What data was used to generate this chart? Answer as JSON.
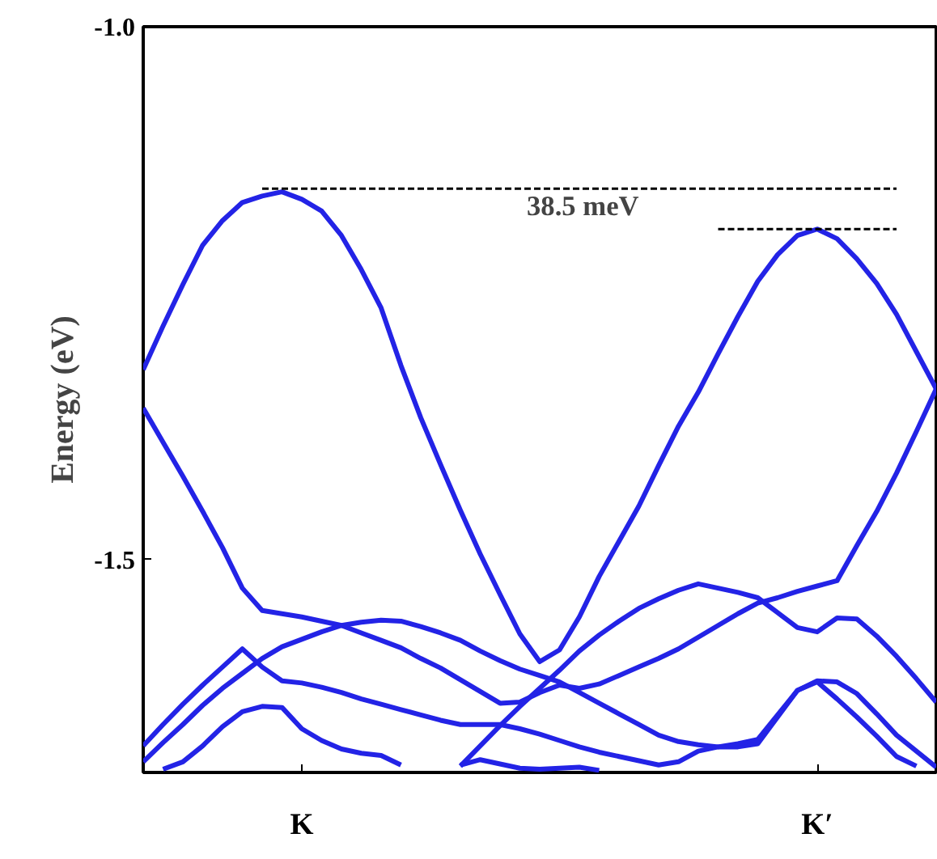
{
  "chart_data": {
    "type": "line",
    "ylabel": "Energy (eV)",
    "ylim": [
      -1.7,
      -1.0
    ],
    "categories": [
      null,
      null,
      null,
      null,
      null,
      null,
      null,
      null,
      "K",
      null,
      null,
      null,
      null,
      null,
      null,
      null,
      null,
      null,
      null,
      null,
      null,
      null,
      null,
      null,
      null,
      null,
      null,
      null,
      null,
      null,
      null,
      null,
      null,
      null,
      "K′",
      null,
      null,
      null,
      null,
      null,
      null
    ],
    "yticks": [
      {
        "value": -1.0,
        "label": "-1.0"
      },
      {
        "value": -1.5,
        "label": "-1.5"
      }
    ],
    "grid": false,
    "line_style": "solid",
    "marker": "none",
    "annotations": [
      "38.5 meV"
    ],
    "series": [
      {
        "color": "#2323e6",
        "values": [
          -1.322,
          -1.281,
          -1.242,
          -1.205,
          -1.182,
          -1.165,
          -1.159,
          -1.155,
          -1.162,
          -1.173,
          -1.196,
          -1.228,
          -1.264,
          -1.318,
          -1.367,
          -1.411,
          -1.454,
          -1.495,
          -1.533,
          -1.57,
          -1.596,
          -1.585,
          -1.554,
          -1.516,
          -1.483,
          -1.45,
          -1.412,
          -1.375,
          -1.343,
          -1.307,
          -1.272,
          -1.239,
          -1.214,
          -1.196,
          -1.19,
          -1.199,
          -1.218,
          -1.241,
          -1.27,
          -1.305,
          -1.34
        ]
      },
      {
        "color": "#2323e6",
        "values": [
          -1.358,
          -1.39,
          -1.422,
          -1.455,
          -1.489,
          -1.527,
          -1.548,
          -1.551,
          -1.554,
          -1.558,
          -1.562,
          -1.569,
          -1.576,
          -1.583,
          -1.593,
          -1.602,
          -1.613,
          -1.624,
          -1.635,
          -1.634,
          -1.625,
          -1.618,
          -1.621,
          -1.617,
          -1.609,
          -1.601,
          -1.593,
          -1.584,
          -1.573,
          -1.562,
          -1.551,
          -1.541,
          -1.536,
          -1.53,
          -1.525,
          -1.52,
          -1.487,
          -1.455,
          -1.419,
          -1.38,
          -1.34
        ]
      },
      {
        "color": "#2323e6",
        "values": [
          -1.69,
          -1.672,
          -1.655,
          -1.637,
          -1.621,
          -1.607,
          -1.593,
          -1.582,
          -1.575,
          -1.568,
          -1.562,
          -1.559,
          -1.557,
          -1.558,
          -1.563,
          -1.569,
          -1.576,
          -1.586,
          -1.595,
          -1.603,
          -1.609,
          -1.615,
          -1.625,
          -1.635,
          -1.645,
          -1.655,
          -1.665,
          -1.671,
          -1.674,
          -1.676,
          -1.676,
          -1.673,
          -1.648,
          -1.623,
          -1.614,
          -1.615,
          -1.626,
          -1.645,
          -1.665,
          -1.68,
          -1.695
        ]
      },
      {
        "color": "#2323e6",
        "values": [
          null,
          null,
          null,
          null,
          null,
          null,
          null,
          null,
          null,
          null,
          null,
          null,
          null,
          null,
          null,
          null,
          -1.694,
          -1.675,
          -1.656,
          -1.638,
          -1.621,
          -1.604,
          -1.586,
          -1.571,
          -1.558,
          -1.546,
          -1.537,
          -1.529,
          -1.523,
          -1.527,
          -1.531,
          -1.536,
          -1.55,
          -1.564,
          -1.568,
          -1.555,
          -1.556,
          -1.572,
          -1.591,
          -1.612,
          -1.634
        ]
      },
      {
        "color": "#2323e6",
        "values": [
          -1.675,
          -1.655,
          -1.636,
          -1.618,
          -1.601,
          -1.584,
          -1.601,
          -1.614,
          -1.616,
          -1.62,
          -1.625,
          -1.631,
          -1.636,
          -1.641,
          -1.646,
          -1.651,
          -1.655,
          -1.655,
          -1.655,
          -1.659,
          -1.664,
          -1.67,
          -1.676,
          -1.681,
          -1.685,
          -1.689,
          -1.693,
          -1.69,
          -1.68,
          -1.676,
          -1.673,
          -1.669,
          -1.646,
          -1.623,
          -1.615,
          -1.631,
          -1.648,
          -1.666,
          -1.685,
          -1.694,
          null
        ]
      },
      {
        "color": "#2323e6",
        "values": [
          null,
          -1.697,
          -1.69,
          -1.675,
          -1.657,
          -1.643,
          -1.638,
          -1.639,
          -1.659,
          -1.67,
          -1.678,
          -1.682,
          -1.684,
          -1.693,
          null,
          null,
          null,
          null,
          null,
          null,
          null,
          null,
          null,
          null,
          null,
          null,
          null,
          null,
          null,
          null,
          null,
          null,
          null,
          null,
          null,
          null,
          null,
          null,
          null,
          null,
          null
        ]
      },
      {
        "color": "#2323e6",
        "values": [
          null,
          null,
          null,
          null,
          null,
          null,
          null,
          null,
          null,
          null,
          null,
          null,
          null,
          null,
          null,
          null,
          -1.693,
          -1.688,
          -1.692,
          -1.696,
          -1.697,
          -1.696,
          -1.695,
          -1.698,
          null,
          null,
          null,
          null,
          null,
          null,
          null,
          null,
          null,
          null,
          null,
          null,
          null,
          null,
          null,
          null,
          null
        ]
      },
      {
        "color": "#000000",
        "line_style": "dashed",
        "values": [
          null,
          null,
          null,
          null,
          null,
          null,
          -1.152,
          -1.152,
          -1.152,
          -1.152,
          -1.152,
          -1.152,
          -1.152,
          -1.152,
          -1.152,
          -1.152,
          -1.152,
          -1.152,
          -1.152,
          -1.152,
          -1.152,
          -1.152,
          -1.152,
          -1.152,
          -1.152,
          -1.152,
          -1.152,
          -1.152,
          -1.152,
          -1.152,
          -1.152,
          -1.152,
          -1.152,
          -1.152,
          -1.152,
          -1.152,
          -1.152,
          -1.152,
          -1.152,
          null,
          null
        ]
      },
      {
        "color": "#000000",
        "line_style": "dashed",
        "values": [
          null,
          null,
          null,
          null,
          null,
          null,
          null,
          null,
          null,
          null,
          null,
          null,
          null,
          null,
          null,
          null,
          null,
          null,
          null,
          null,
          null,
          null,
          null,
          null,
          null,
          null,
          null,
          null,
          null,
          -1.19,
          -1.19,
          -1.19,
          -1.19,
          -1.19,
          -1.19,
          -1.19,
          -1.19,
          -1.19,
          -1.19,
          null,
          null
        ]
      }
    ]
  }
}
